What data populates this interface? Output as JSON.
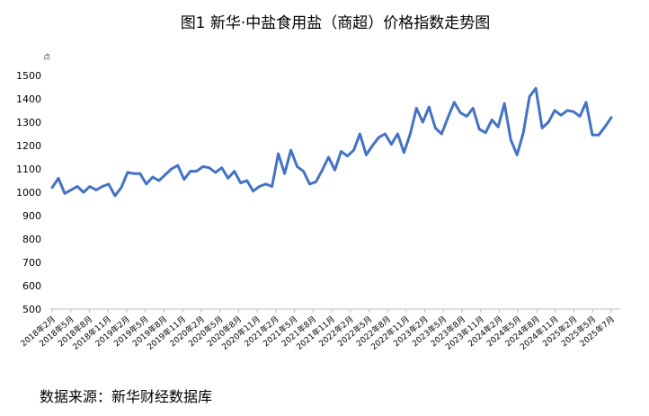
{
  "chart_data": {
    "type": "line",
    "title": "图1 新华·中盐食用盐（商超）价格指数走势图",
    "ylabel": "点",
    "ylim": [
      500,
      1500
    ],
    "yticks": [
      500,
      600,
      700,
      800,
      900,
      1000,
      1100,
      1200,
      1300,
      1400,
      1500
    ],
    "grid": false,
    "series_color": "#4472C4",
    "xticks": [
      "2018年2月",
      "2018年5月",
      "2018年8月",
      "2018年11月",
      "2019年2月",
      "2019年5月",
      "2019年8月",
      "2019年11月",
      "2020年2月",
      "2020年5月",
      "2020年8月",
      "2020年11月",
      "2021年2月",
      "2021年5月",
      "2021年8月",
      "2021年11月",
      "2022年2月",
      "2022年5月",
      "2022年8月",
      "2022年11月",
      "2023年2月",
      "2023年5月",
      "2023年8月",
      "2023年11月",
      "2024年2月",
      "2024年5月",
      "2024年8月",
      "2024年11月",
      "2025年2月",
      "2025年5月",
      "2025年7月"
    ],
    "values": [
      1020,
      1060,
      995,
      1010,
      1025,
      1000,
      1025,
      1010,
      1025,
      1035,
      985,
      1020,
      1085,
      1080,
      1080,
      1035,
      1065,
      1050,
      1075,
      1100,
      1115,
      1055,
      1090,
      1090,
      1110,
      1105,
      1085,
      1105,
      1060,
      1090,
      1040,
      1050,
      1005,
      1025,
      1035,
      1025,
      1165,
      1080,
      1180,
      1110,
      1090,
      1035,
      1045,
      1095,
      1150,
      1095,
      1175,
      1155,
      1180,
      1250,
      1160,
      1200,
      1235,
      1250,
      1205,
      1250,
      1170,
      1250,
      1360,
      1300,
      1365,
      1275,
      1250,
      1320,
      1385,
      1340,
      1325,
      1360,
      1270,
      1255,
      1310,
      1280,
      1380,
      1225,
      1160,
      1255,
      1410,
      1445,
      1275,
      1300,
      1350,
      1330,
      1350,
      1345,
      1325,
      1385,
      1245,
      1245,
      1280,
      1320
    ],
    "source": "数据来源：新华财经数据库"
  }
}
